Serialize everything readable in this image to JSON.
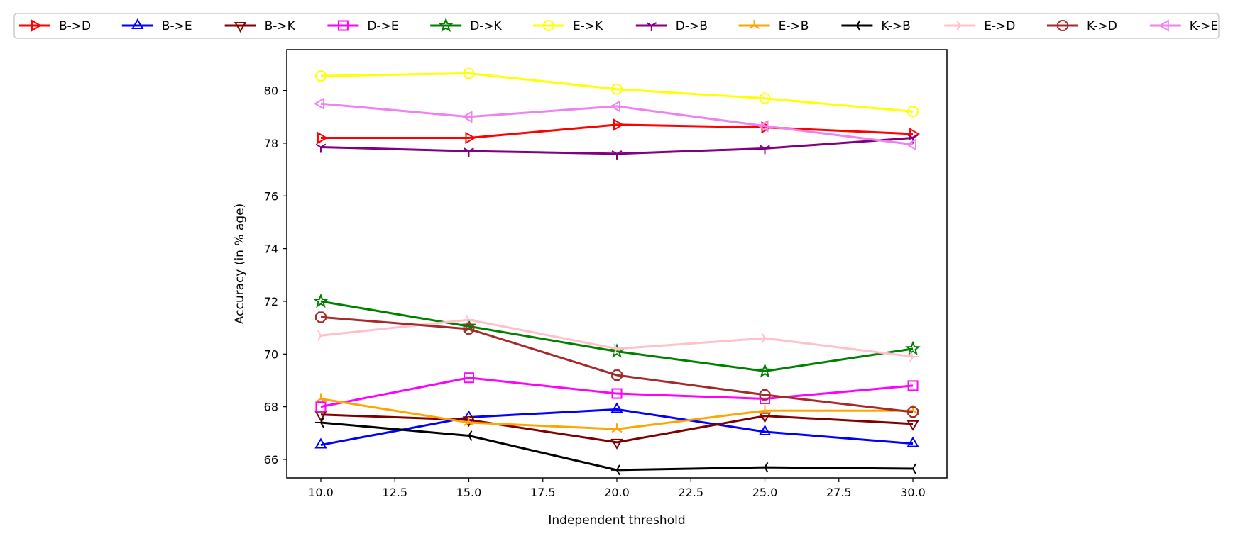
{
  "chart_data": {
    "type": "line",
    "title": "",
    "xlabel": "Independent threshold",
    "ylabel": "Accuracy (in % age)",
    "x": [
      10,
      15,
      20,
      25,
      30
    ],
    "xlim": [
      8.85,
      31.15
    ],
    "ylim": [
      65.3,
      81.55
    ],
    "xticks": [
      10.0,
      12.5,
      15.0,
      17.5,
      20.0,
      22.5,
      25.0,
      27.5,
      30.0
    ],
    "xtick_labels": [
      "10.0",
      "12.5",
      "15.0",
      "17.5",
      "20.0",
      "22.5",
      "25.0",
      "27.5",
      "30.0"
    ],
    "yticks": [
      66,
      68,
      70,
      72,
      74,
      76,
      78,
      80
    ],
    "ytick_labels": [
      "66",
      "68",
      "70",
      "72",
      "74",
      "76",
      "78",
      "80"
    ],
    "grid": false,
    "legend_position": "top",
    "series": [
      {
        "name": "B->D",
        "color": "#ff0000",
        "marker": "triangle-right",
        "values": [
          78.2,
          78.2,
          78.7,
          78.6,
          78.35
        ]
      },
      {
        "name": "B->E",
        "color": "#0000ff",
        "marker": "triangle-up",
        "values": [
          66.55,
          67.6,
          67.9,
          67.05,
          66.6
        ]
      },
      {
        "name": "B->K",
        "color": "#800000",
        "marker": "triangle-down",
        "values": [
          67.7,
          67.5,
          66.65,
          67.65,
          67.35
        ]
      },
      {
        "name": "D->E",
        "color": "#ff00ff",
        "marker": "square",
        "values": [
          68.0,
          69.1,
          68.5,
          68.3,
          68.8
        ]
      },
      {
        "name": "D->K",
        "color": "#008000",
        "marker": "star",
        "values": [
          72.0,
          71.05,
          70.1,
          69.35,
          70.2
        ]
      },
      {
        "name": "E->K",
        "color": "#ffff00",
        "marker": "circle",
        "values": [
          80.55,
          80.65,
          80.05,
          79.7,
          79.2
        ]
      },
      {
        "name": "D->B",
        "color": "#800080",
        "marker": "tri-down",
        "values": [
          77.85,
          77.7,
          77.6,
          77.8,
          78.2
        ]
      },
      {
        "name": "E->B",
        "color": "#ffa500",
        "marker": "tri-up",
        "values": [
          68.3,
          67.4,
          67.15,
          67.85,
          67.85
        ]
      },
      {
        "name": "K->B",
        "color": "#000000",
        "marker": "tri-left",
        "values": [
          67.4,
          66.9,
          65.6,
          65.7,
          65.65
        ]
      },
      {
        "name": "E->D",
        "color": "#ffc0cb",
        "marker": "tri-right",
        "values": [
          70.7,
          71.3,
          70.2,
          70.6,
          69.9
        ]
      },
      {
        "name": "K->D",
        "color": "#a52a2a",
        "marker": "octagon",
        "values": [
          71.4,
          70.95,
          69.2,
          68.45,
          67.8
        ]
      },
      {
        "name": "K->E",
        "color": "#ee82ee",
        "marker": "triangle-left",
        "values": [
          79.5,
          79.0,
          79.4,
          78.65,
          77.95
        ]
      }
    ]
  }
}
